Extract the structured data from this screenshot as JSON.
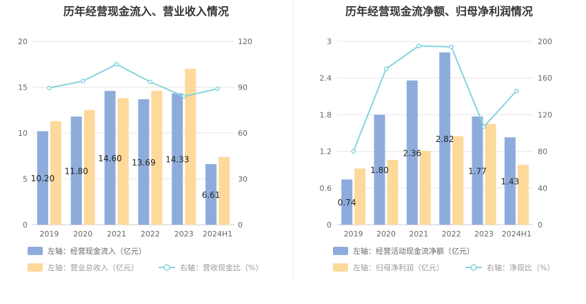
{
  "chart_data": [
    {
      "type": "bar",
      "title": "历年经营现金流入、营业收入情况",
      "categories": [
        "2019",
        "2020",
        "2021",
        "2022",
        "2023",
        "2024H1"
      ],
      "left_axis": {
        "min": 0,
        "max": 20,
        "ticks": [
          "0",
          "5",
          "10",
          "15",
          "20"
        ]
      },
      "right_axis": {
        "min": 0,
        "max": 120,
        "ticks": [
          "0",
          "30",
          "60",
          "90",
          "120"
        ]
      },
      "series": [
        {
          "name": "左轴：经营现金流入（亿元）",
          "axis": "left",
          "kind": "bar",
          "color": "#8eacdb",
          "values": [
            10.2,
            11.8,
            14.6,
            13.69,
            14.33,
            6.61
          ],
          "labels": [
            "10.20",
            "11.80",
            "14.60",
            "13.69",
            "14.33",
            "6.61"
          ]
        },
        {
          "name": "左轴：营业总收入（亿元）",
          "axis": "left",
          "kind": "bar",
          "color": "#fdd99b",
          "values": [
            11.3,
            12.5,
            13.8,
            14.6,
            17.0,
            7.4
          ]
        },
        {
          "name": "右轴：营收现金比（%）",
          "axis": "right",
          "kind": "line",
          "color": "#84d4dc",
          "values": [
            89.5,
            94.0,
            105.0,
            93.5,
            84.0,
            89.0
          ]
        }
      ],
      "legend": "bottom-left",
      "grid": true
    },
    {
      "type": "bar",
      "title": "历年经营现金流净额、归母净利润情况",
      "categories": [
        "2019",
        "2020",
        "2021",
        "2022",
        "2023",
        "2024H1"
      ],
      "left_axis": {
        "min": 0,
        "max": 3,
        "ticks": [
          "0",
          "0.6",
          "1.2",
          "1.8",
          "2.4",
          "3"
        ]
      },
      "right_axis": {
        "min": 0,
        "max": 200,
        "ticks": [
          "0",
          "40",
          "80",
          "120",
          "160",
          "200"
        ]
      },
      "series": [
        {
          "name": "左轴：经营活动现金流净额（亿元）",
          "axis": "left",
          "kind": "bar",
          "color": "#8eacdb",
          "values": [
            0.74,
            1.8,
            2.36,
            2.82,
            1.77,
            1.43
          ],
          "labels": [
            "0.74",
            "1.80",
            "2.36",
            "2.82",
            "1.77",
            "1.43"
          ]
        },
        {
          "name": "左轴：归母净利润（亿元）",
          "axis": "left",
          "kind": "bar",
          "color": "#fdd99b",
          "values": [
            0.92,
            1.06,
            1.21,
            1.45,
            1.65,
            0.98
          ]
        },
        {
          "name": "右轴：净现比（%）",
          "axis": "right",
          "kind": "line",
          "color": "#84d4dc",
          "values": [
            80,
            170,
            195,
            194,
            107,
            146
          ]
        }
      ],
      "legend": "bottom-left",
      "grid": true
    }
  ]
}
